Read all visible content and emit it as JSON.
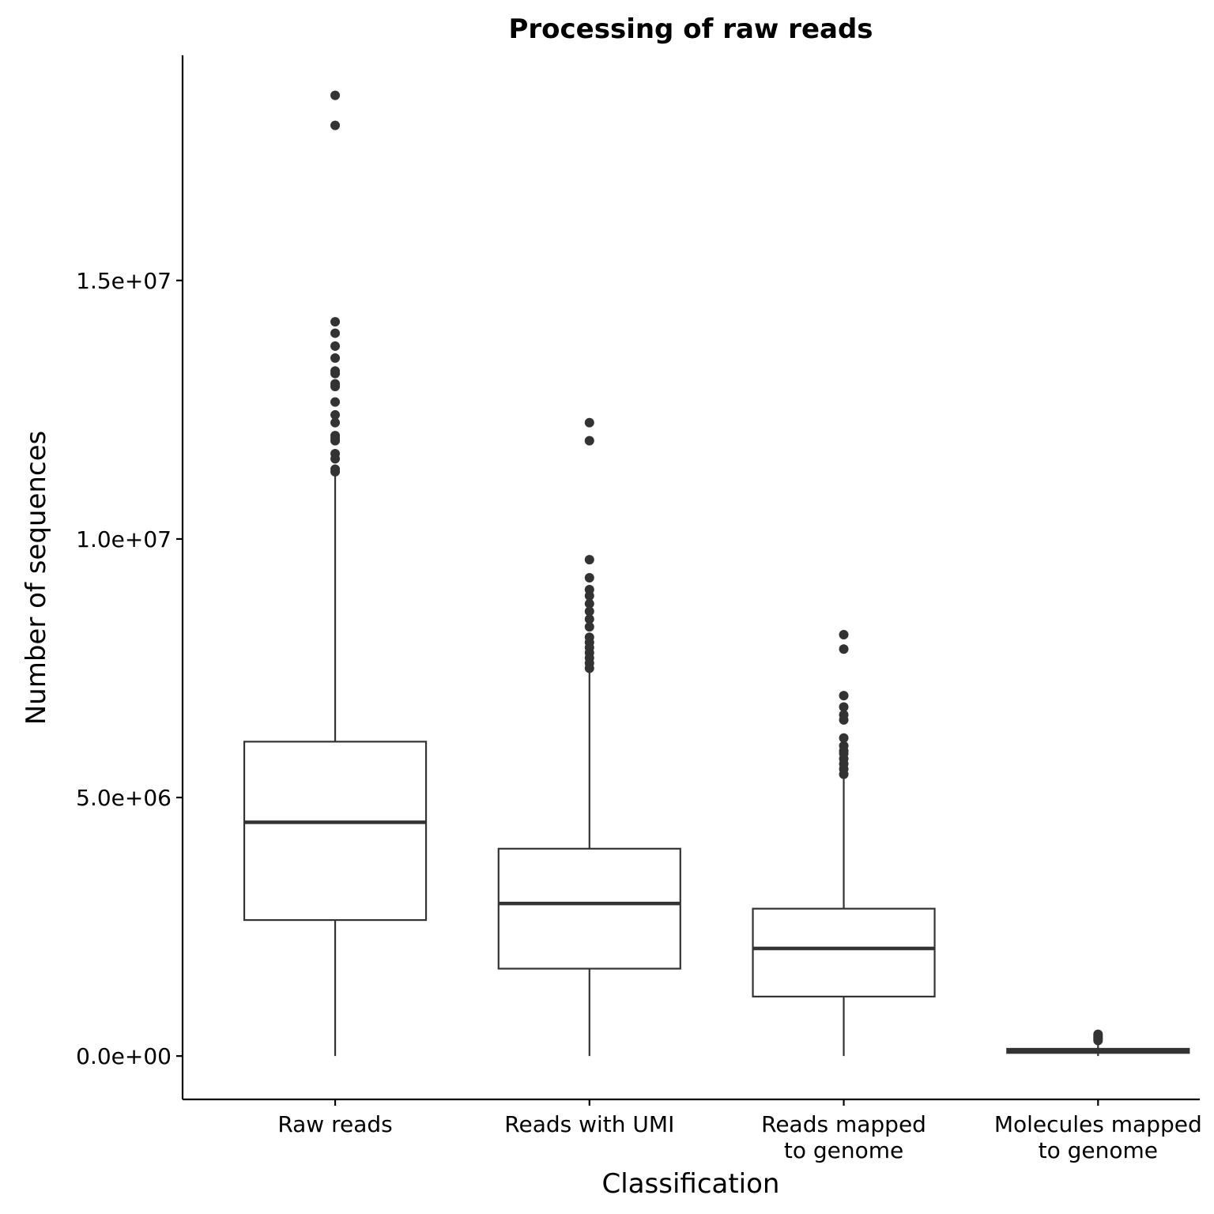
{
  "chart_data": {
    "type": "boxplot",
    "title": "Processing of raw reads",
    "xlabel": "Classification",
    "ylabel": "Number of sequences",
    "ylim": [
      -900000,
      19400000
    ],
    "yticks": [
      {
        "value": 0,
        "label": "0.0e+00"
      },
      {
        "value": 5000000,
        "label": "5.0e+06"
      },
      {
        "value": 10000000,
        "label": "1.0e+07"
      },
      {
        "value": 15000000,
        "label": "1.5e+07"
      }
    ],
    "grid": false,
    "legend": "none",
    "colors": {
      "box_stroke": "#333333",
      "box_fill": "#ffffff",
      "axis": "#000000"
    },
    "categories": [
      {
        "label": [
          "Raw reads"
        ],
        "min": 0,
        "q1": 2630000,
        "median": 4520000,
        "q3": 6080000,
        "max": 11300000,
        "outliers": [
          18580000,
          18000000,
          14200000,
          13980000,
          13730000,
          13500000,
          13250000,
          13200000,
          13000000,
          12950000,
          12650000,
          12400000,
          12250000,
          12000000,
          11950000,
          11900000,
          11650000,
          11550000,
          11350000,
          11300000
        ]
      },
      {
        "label": [
          "Reads with UMI"
        ],
        "min": 0,
        "q1": 1690000,
        "median": 2950000,
        "q3": 4010000,
        "max": 7450000,
        "outliers": [
          12250000,
          11900000,
          9600000,
          9250000,
          9020000,
          8900000,
          8750000,
          8600000,
          8450000,
          8300000,
          8100000,
          8000000,
          7900000,
          7800000,
          7700000,
          7600000,
          7500000
        ]
      },
      {
        "label": [
          "Reads mapped",
          "to genome"
        ],
        "min": 0,
        "q1": 1150000,
        "median": 2080000,
        "q3": 2850000,
        "max": 5400000,
        "outliers": [
          8150000,
          7870000,
          6970000,
          6750000,
          6600000,
          6500000,
          6150000,
          6000000,
          5900000,
          5850000,
          5750000,
          5650000,
          5550000,
          5450000
        ]
      },
      {
        "label": [
          "Molecules mapped",
          "to genome"
        ],
        "min": 0,
        "q1": 60000,
        "median": 100000,
        "q3": 140000,
        "max": 270000,
        "outliers": [
          420000,
          390000,
          360000,
          330000,
          300000
        ]
      }
    ]
  }
}
